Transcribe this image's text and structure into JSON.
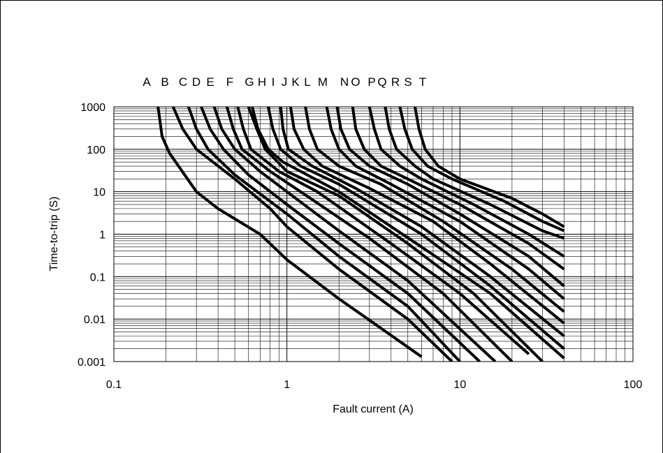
{
  "chart_data": {
    "type": "line",
    "xlabel": "Fault current (A)",
    "ylabel": "Time-to-trip (S)",
    "xscale": "log",
    "yscale": "log",
    "xlim": [
      0.1,
      100
    ],
    "ylim": [
      0.001,
      1000
    ],
    "grid": true,
    "x_ticks": [
      "0.1",
      "1",
      "10",
      "100"
    ],
    "y_ticks": [
      "1000",
      "100",
      "10",
      "1",
      "0.1",
      "0.01",
      "0.001"
    ],
    "legend_position": "top",
    "series": [
      {
        "name": "A",
        "points": [
          [
            0.18,
            1000
          ],
          [
            0.19,
            200
          ],
          [
            0.21,
            80
          ],
          [
            0.3,
            10
          ],
          [
            0.4,
            4
          ],
          [
            0.7,
            1
          ],
          [
            1,
            0.25
          ],
          [
            2,
            0.03
          ],
          [
            6,
            0.0013
          ]
        ]
      },
      {
        "name": "B",
        "points": [
          [
            0.22,
            1000
          ],
          [
            0.25,
            300
          ],
          [
            0.3,
            100
          ],
          [
            0.5,
            20
          ],
          [
            0.8,
            4
          ],
          [
            1,
            1.5
          ],
          [
            2,
            0.15
          ],
          [
            5,
            0.01
          ],
          [
            9,
            0.001
          ]
        ]
      },
      {
        "name": "C",
        "points": [
          [
            0.27,
            1000
          ],
          [
            0.3,
            300
          ],
          [
            0.35,
            100
          ],
          [
            0.5,
            25
          ],
          [
            1,
            3
          ],
          [
            2,
            0.3
          ],
          [
            5,
            0.02
          ],
          [
            10,
            0.001
          ]
        ]
      },
      {
        "name": "D",
        "points": [
          [
            0.32,
            1000
          ],
          [
            0.36,
            300
          ],
          [
            0.43,
            100
          ],
          [
            0.6,
            25
          ],
          [
            1,
            5
          ],
          [
            2,
            0.6
          ],
          [
            5,
            0.04
          ],
          [
            13,
            0.001
          ]
        ]
      },
      {
        "name": "E",
        "points": [
          [
            0.38,
            1000
          ],
          [
            0.42,
            300
          ],
          [
            0.5,
            100
          ],
          [
            0.7,
            30
          ],
          [
            1,
            10
          ],
          [
            2,
            1.2
          ],
          [
            5,
            0.08
          ],
          [
            16,
            0.001
          ]
        ]
      },
      {
        "name": "F",
        "points": [
          [
            0.45,
            1000
          ],
          [
            0.49,
            300
          ],
          [
            0.55,
            100
          ],
          [
            0.8,
            30
          ],
          [
            1.2,
            10
          ],
          [
            3,
            0.8
          ],
          [
            8,
            0.04
          ],
          [
            20,
            0.001
          ]
        ]
      },
      {
        "name": "G",
        "points": [
          [
            0.52,
            1000
          ],
          [
            0.56,
            300
          ],
          [
            0.62,
            100
          ],
          [
            0.9,
            30
          ],
          [
            1.5,
            10
          ],
          [
            4,
            0.6
          ],
          [
            10,
            0.04
          ],
          [
            25,
            0.0015
          ]
        ]
      },
      {
        "name": "H",
        "points": [
          [
            0.6,
            1000
          ],
          [
            0.67,
            300
          ],
          [
            0.75,
            100
          ],
          [
            1,
            30
          ],
          [
            2,
            8
          ],
          [
            5,
            0.6
          ],
          [
            12,
            0.04
          ],
          [
            30,
            0.001
          ]
        ]
      },
      {
        "name": "I",
        "points": [
          [
            0.63,
            1000
          ],
          [
            0.68,
            300
          ],
          [
            0.78,
            100
          ],
          [
            0.95,
            50
          ],
          [
            2,
            10
          ],
          [
            6,
            0.5
          ],
          [
            15,
            0.04
          ],
          [
            40,
            0.0012
          ]
        ]
      },
      {
        "name": "J",
        "points": [
          [
            0.78,
            1000
          ],
          [
            0.83,
            300
          ],
          [
            0.92,
            100
          ],
          [
            1.2,
            40
          ],
          [
            2,
            15
          ],
          [
            6,
            1
          ],
          [
            15,
            0.06
          ],
          [
            40,
            0.002
          ]
        ]
      },
      {
        "name": "K",
        "points": [
          [
            0.92,
            1000
          ],
          [
            0.95,
            300
          ],
          [
            1.02,
            100
          ],
          [
            1.4,
            40
          ],
          [
            2.5,
            12
          ],
          [
            6,
            1.5
          ],
          [
            15,
            0.1
          ],
          [
            40,
            0.004
          ]
        ]
      },
      {
        "name": "L",
        "points": [
          [
            1.05,
            1000
          ],
          [
            1.1,
            300
          ],
          [
            1.25,
            100
          ],
          [
            1.6,
            40
          ],
          [
            3,
            12
          ],
          [
            7,
            2
          ],
          [
            15,
            0.2
          ],
          [
            40,
            0.008
          ]
        ]
      },
      {
        "name": "M",
        "points": [
          [
            1.28,
            1000
          ],
          [
            1.35,
            300
          ],
          [
            1.5,
            100
          ],
          [
            2,
            40
          ],
          [
            3.5,
            15
          ],
          [
            8,
            2
          ],
          [
            20,
            0.15
          ],
          [
            40,
            0.015
          ]
        ]
      },
      {
        "name": "N",
        "points": [
          [
            1.7,
            1000
          ],
          [
            1.8,
            300
          ],
          [
            2,
            100
          ],
          [
            2.5,
            40
          ],
          [
            4,
            15
          ],
          [
            10,
            2
          ],
          [
            25,
            0.15
          ],
          [
            40,
            0.03
          ]
        ]
      },
      {
        "name": "O",
        "points": [
          [
            1.95,
            1000
          ],
          [
            2.05,
            300
          ],
          [
            2.3,
            100
          ],
          [
            3,
            40
          ],
          [
            5,
            15
          ],
          [
            10,
            3
          ],
          [
            25,
            0.3
          ],
          [
            40,
            0.06
          ]
        ]
      },
      {
        "name": "P",
        "points": [
          [
            2.4,
            1000
          ],
          [
            2.5,
            300
          ],
          [
            2.8,
            100
          ],
          [
            3.5,
            40
          ],
          [
            5,
            20
          ],
          [
            10,
            5
          ],
          [
            25,
            0.6
          ],
          [
            40,
            0.15
          ]
        ]
      },
      {
        "name": "Q",
        "points": [
          [
            3,
            1000
          ],
          [
            3.2,
            300
          ],
          [
            3.5,
            100
          ],
          [
            4.5,
            40
          ],
          [
            6,
            20
          ],
          [
            12,
            5
          ],
          [
            25,
            1
          ],
          [
            40,
            0.3
          ]
        ]
      },
      {
        "name": "R",
        "points": [
          [
            3.7,
            1000
          ],
          [
            3.9,
            300
          ],
          [
            4.3,
            100
          ],
          [
            5.5,
            40
          ],
          [
            7,
            20
          ],
          [
            15,
            5
          ],
          [
            30,
            1.2
          ],
          [
            40,
            0.8
          ]
        ]
      },
      {
        "name": "S",
        "points": [
          [
            4.5,
            1000
          ],
          [
            4.8,
            300
          ],
          [
            5.3,
            100
          ],
          [
            6.5,
            40
          ],
          [
            9,
            20
          ],
          [
            18,
            6
          ],
          [
            30,
            2
          ],
          [
            40,
            1.2
          ]
        ]
      },
      {
        "name": "T",
        "points": [
          [
            5.5,
            1000
          ],
          [
            5.8,
            300
          ],
          [
            6.3,
            100
          ],
          [
            7.5,
            40
          ],
          [
            10,
            20
          ],
          [
            20,
            7
          ],
          [
            30,
            3
          ],
          [
            40,
            1.5
          ]
        ]
      }
    ]
  }
}
